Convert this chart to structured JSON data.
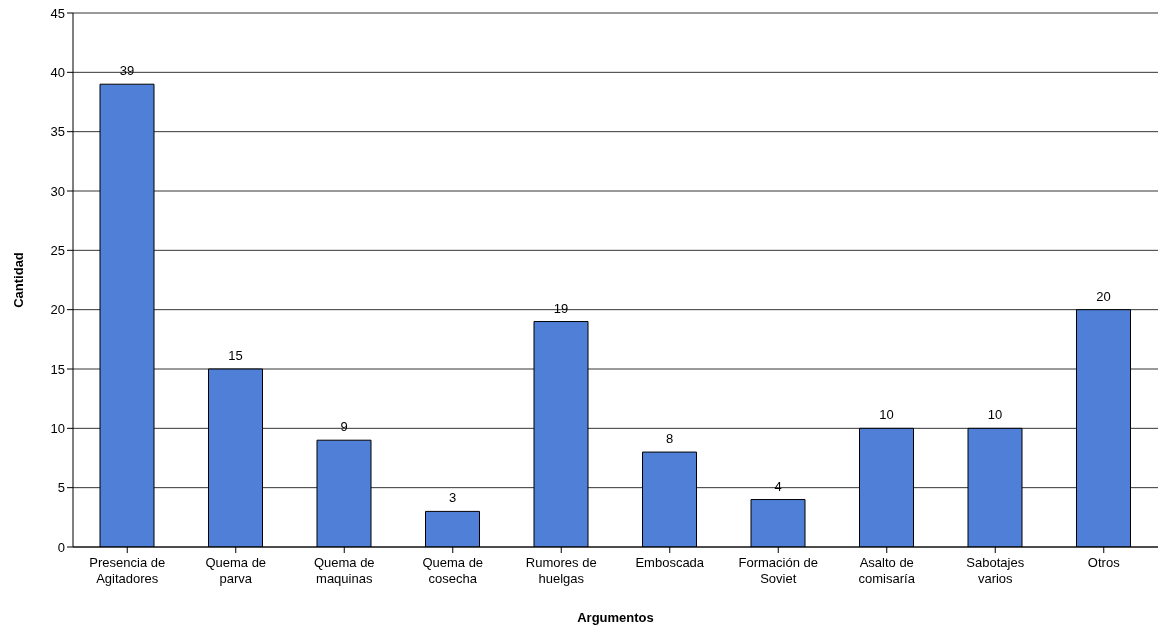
{
  "chart_data": {
    "type": "bar",
    "xlabel": "Argumentos",
    "ylabel": "Cantidad",
    "categories": [
      "Presencia de Agitadores",
      "Quema de parva",
      "Quema de maquinas",
      "Quema de cosecha",
      "Rumores de huelgas",
      "Emboscada",
      "Formación de Soviet",
      "Asalto de comisaría",
      "Sabotajes varios",
      "Otros"
    ],
    "values": [
      39,
      15,
      9,
      3,
      19,
      8,
      4,
      10,
      10,
      20
    ],
    "color": "#4f7fd6",
    "ylim": [
      0,
      45
    ],
    "yticks": [
      0,
      5,
      10,
      15,
      20,
      25,
      30,
      35,
      40,
      45
    ],
    "grid": "y",
    "data_labels": true
  }
}
